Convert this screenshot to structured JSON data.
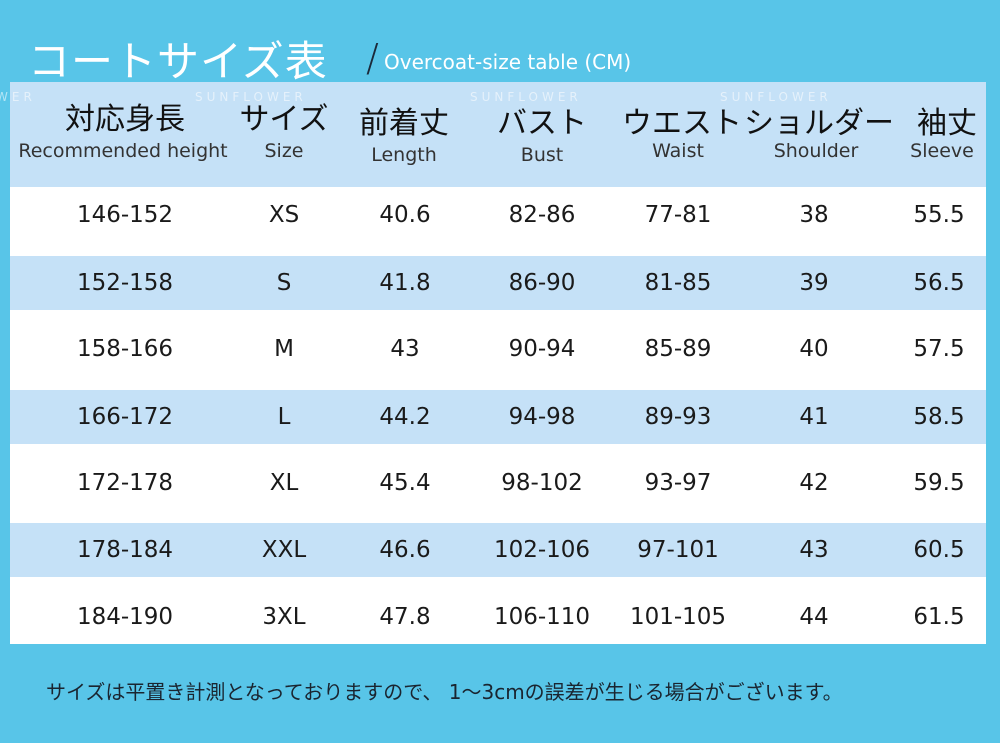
{
  "title": {
    "jp": "コートサイズ表",
    "slash": "/",
    "en": "Overcoat-size table (CM)"
  },
  "watermark": "SUNFLOWER",
  "columns": [
    {
      "jp": "対応身長",
      "en": "Recommended height"
    },
    {
      "jp": "サイズ",
      "en": "Size"
    },
    {
      "jp": "前着丈",
      "en": "Length"
    },
    {
      "jp": "バスト",
      "en": "Bust"
    },
    {
      "jp": "ウエスト",
      "en": "Waist"
    },
    {
      "jp": "ショルダー",
      "en": "Shoulder"
    },
    {
      "jp": "袖丈",
      "en": "Sleeve"
    }
  ],
  "rows": [
    [
      "146-152",
      "XS",
      "40.6",
      "82-86",
      "77-81",
      "38",
      "55.5"
    ],
    [
      "152-158",
      "S",
      "41.8",
      "86-90",
      "81-85",
      "39",
      "56.5"
    ],
    [
      "158-166",
      "M",
      "43",
      "90-94",
      "85-89",
      "40",
      "57.5"
    ],
    [
      "166-172",
      "L",
      "44.2",
      "94-98",
      "89-93",
      "41",
      "58.5"
    ],
    [
      "172-178",
      "XL",
      "45.4",
      "98-102",
      "93-97",
      "42",
      "59.5"
    ],
    [
      "178-184",
      "XXL",
      "46.6",
      "102-106",
      "97-101",
      "43",
      "60.5"
    ],
    [
      "184-190",
      "3XL",
      "47.8",
      "106-110",
      "101-105",
      "44",
      "61.5"
    ]
  ],
  "note": "サイズは平置き計測となっておりますので、 1～3cmの誤差が生じる場合がございます。"
}
